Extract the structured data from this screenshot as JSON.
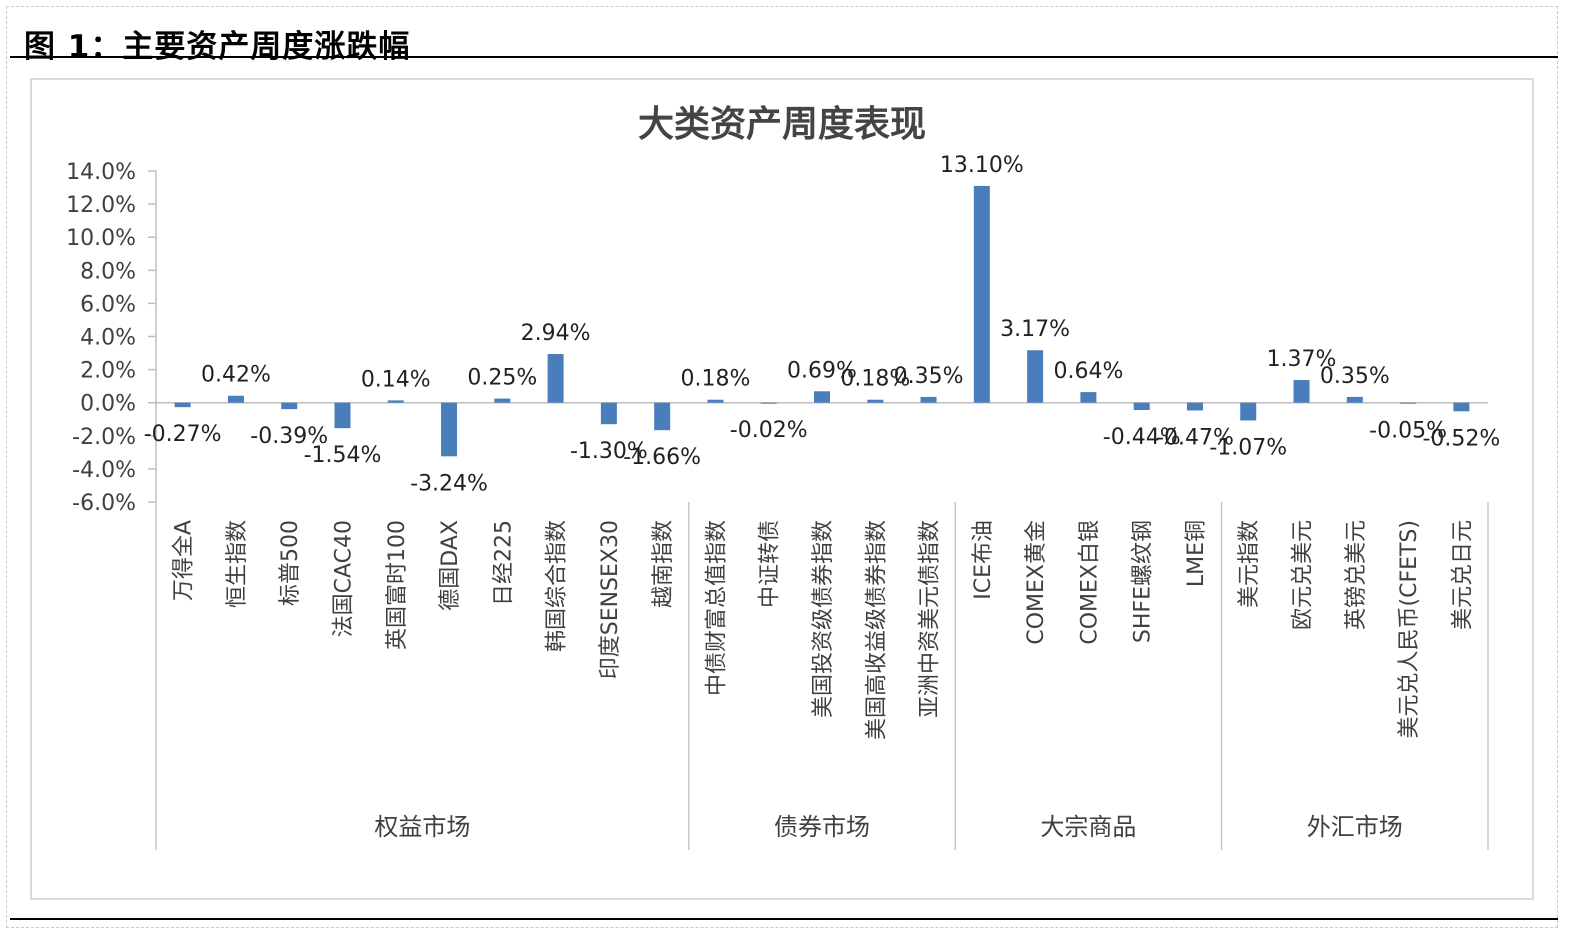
{
  "figure": {
    "title": "图 1：主要资产周度涨跌幅"
  },
  "chart_data": {
    "type": "bar",
    "title": "大类资产周度表现",
    "xlabel": "",
    "ylabel": "",
    "ylim": [
      -6,
      14
    ],
    "yticks": [
      "14.0%",
      "12.0%",
      "10.0%",
      "8.0%",
      "6.0%",
      "4.0%",
      "2.0%",
      "0.0%",
      "-2.0%",
      "-4.0%",
      "-6.0%"
    ],
    "ytick_values": [
      14,
      12,
      10,
      8,
      6,
      4,
      2,
      0,
      -2,
      -4,
      -6
    ],
    "grid": false,
    "legend": "none",
    "bar_color": "#4a7ebb",
    "categories": [
      "万得全A",
      "恒生指数",
      "标普500",
      "法国CAC40",
      "英国富时100",
      "德国DAX",
      "日经225",
      "韩国综合指数",
      "印度SENSEX30",
      "越南指数",
      "中债财富总值指数",
      "中证转债",
      "美国投资级债券指数",
      "美国高收益级债券指数",
      "亚洲中资美元债指数",
      "ICE布油",
      "COMEX黄金",
      "COMEX白银",
      "SHFE螺纹钢",
      "LME铜",
      "美元指数",
      "欧元兑美元",
      "英镑兑美元",
      "美元兑人民币(CFETS)",
      "美元兑日元"
    ],
    "values": [
      -0.27,
      0.42,
      -0.39,
      -1.54,
      0.14,
      -3.24,
      0.25,
      2.94,
      -1.3,
      -1.66,
      0.18,
      -0.02,
      0.69,
      0.18,
      0.35,
      13.1,
      3.17,
      0.64,
      -0.44,
      -0.47,
      -1.07,
      1.37,
      0.35,
      -0.05,
      -0.52
    ],
    "data_labels": [
      "-0.27%",
      "0.42%",
      "-0.39%",
      "-1.54%",
      "0.14%",
      "-3.24%",
      "0.25%",
      "2.94%",
      "-1.30%",
      "-1.66%",
      "0.18%",
      "-0.02%",
      "0.69%",
      "0.18%",
      "0.35%",
      "13.10%",
      "3.17%",
      "0.64%",
      "-0.44%",
      "-0.47%",
      "-1.07%",
      "1.37%",
      "0.35%",
      "-0.05%",
      "-0.52%"
    ],
    "groups": [
      {
        "name": "权益市场",
        "count": 10
      },
      {
        "name": "债券市场",
        "count": 5
      },
      {
        "name": "大宗商品",
        "count": 5
      },
      {
        "name": "外汇市场",
        "count": 5
      }
    ]
  }
}
